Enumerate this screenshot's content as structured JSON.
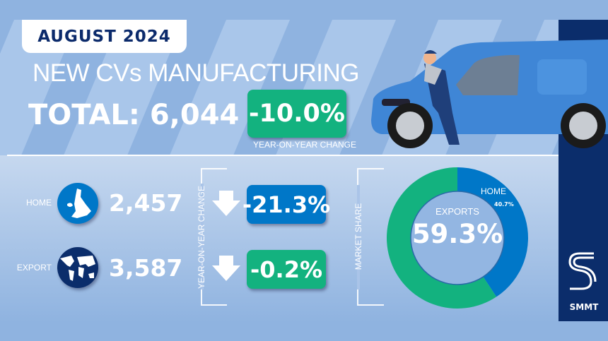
{
  "header": {
    "date": "AUGUST 2024",
    "title": "NEW CVs MANUFACTURING",
    "total_label": "TOTAL: 6,044",
    "total_change": "-10.0%",
    "change_caption": "YEAR-ON-YEAR CHANGE"
  },
  "breakdown": {
    "yoy_label": "YEAR-ON-YEAR CHANGE",
    "rows": [
      {
        "label": "HOME",
        "value": "2,457",
        "change": "-21.3%",
        "icon": "uk-map-icon",
        "color": "#0077c8"
      },
      {
        "label": "EXPORT",
        "value": "3,587",
        "change": "-0.2%",
        "icon": "globe-icon",
        "color": "#13b27f"
      }
    ]
  },
  "market_share": {
    "label": "MARKET SHARE",
    "center_label": "EXPORTS",
    "center_value": "59.3%",
    "home_label": "HOME",
    "home_value": "40.7%"
  },
  "chart_data": {
    "type": "pie",
    "style": "donut",
    "categories": [
      "HOME",
      "EXPORTS"
    ],
    "values": [
      40.7,
      59.3
    ],
    "colors": [
      "#0077c8",
      "#13b27f"
    ]
  },
  "brand": {
    "logo_text": "SMMT"
  },
  "colors": {
    "navy": "#0b2d6b",
    "green": "#13b27f",
    "blue": "#0077c8",
    "background": "#8fb3e0"
  }
}
